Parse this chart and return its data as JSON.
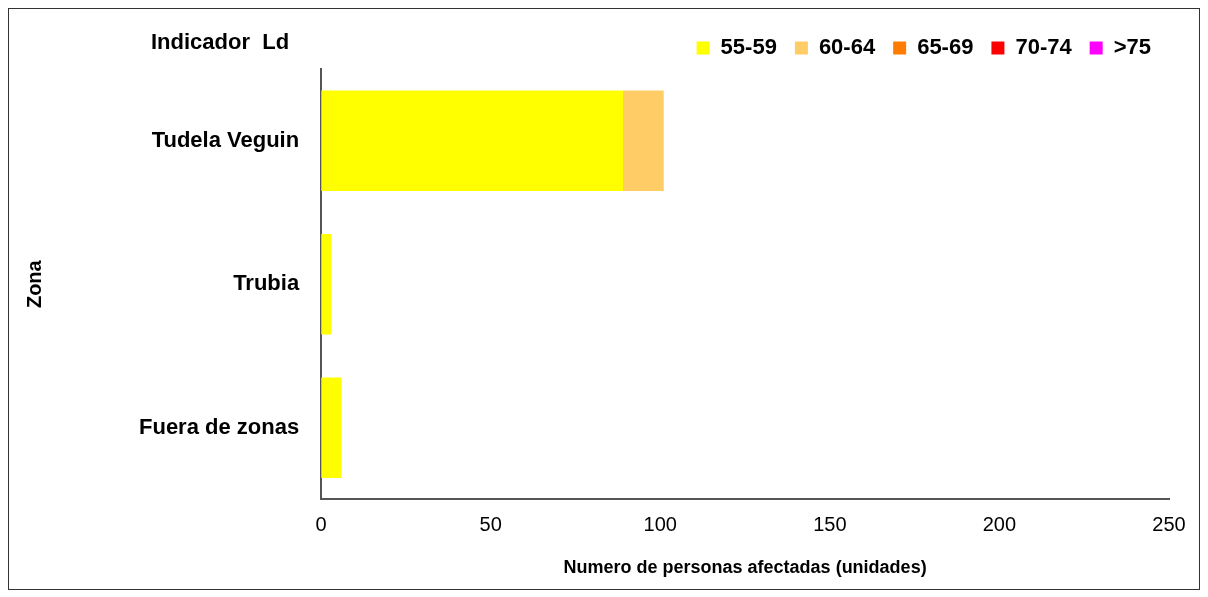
{
  "chart_data": {
    "type": "bar",
    "orientation": "horizontal",
    "stacked": true,
    "title": "Indicador  Ld",
    "xlabel": "Numero de personas afectadas (unidades)",
    "ylabel": "Zona",
    "categories": [
      "Tudela Veguin",
      "Trubia",
      "Fuera de zonas"
    ],
    "series": [
      {
        "name": "55-59",
        "color": "#ffff00",
        "values": [
          89,
          3,
          6
        ]
      },
      {
        "name": "60-64",
        "color": "#ffcc66",
        "values": [
          12,
          0,
          0
        ]
      },
      {
        "name": "65-69",
        "color": "#ff7c00",
        "values": [
          0,
          0,
          0
        ]
      },
      {
        "name": "70-74",
        "color": "#ff0000",
        "values": [
          0,
          0,
          0
        ]
      },
      {
        "name": ">75",
        "color": "#ff00ff",
        "values": [
          0,
          0,
          0
        ]
      }
    ],
    "xlim": [
      0,
      250
    ],
    "xticks": [
      0,
      50,
      100,
      150,
      200,
      250
    ],
    "grid": false,
    "legend": "top right"
  }
}
